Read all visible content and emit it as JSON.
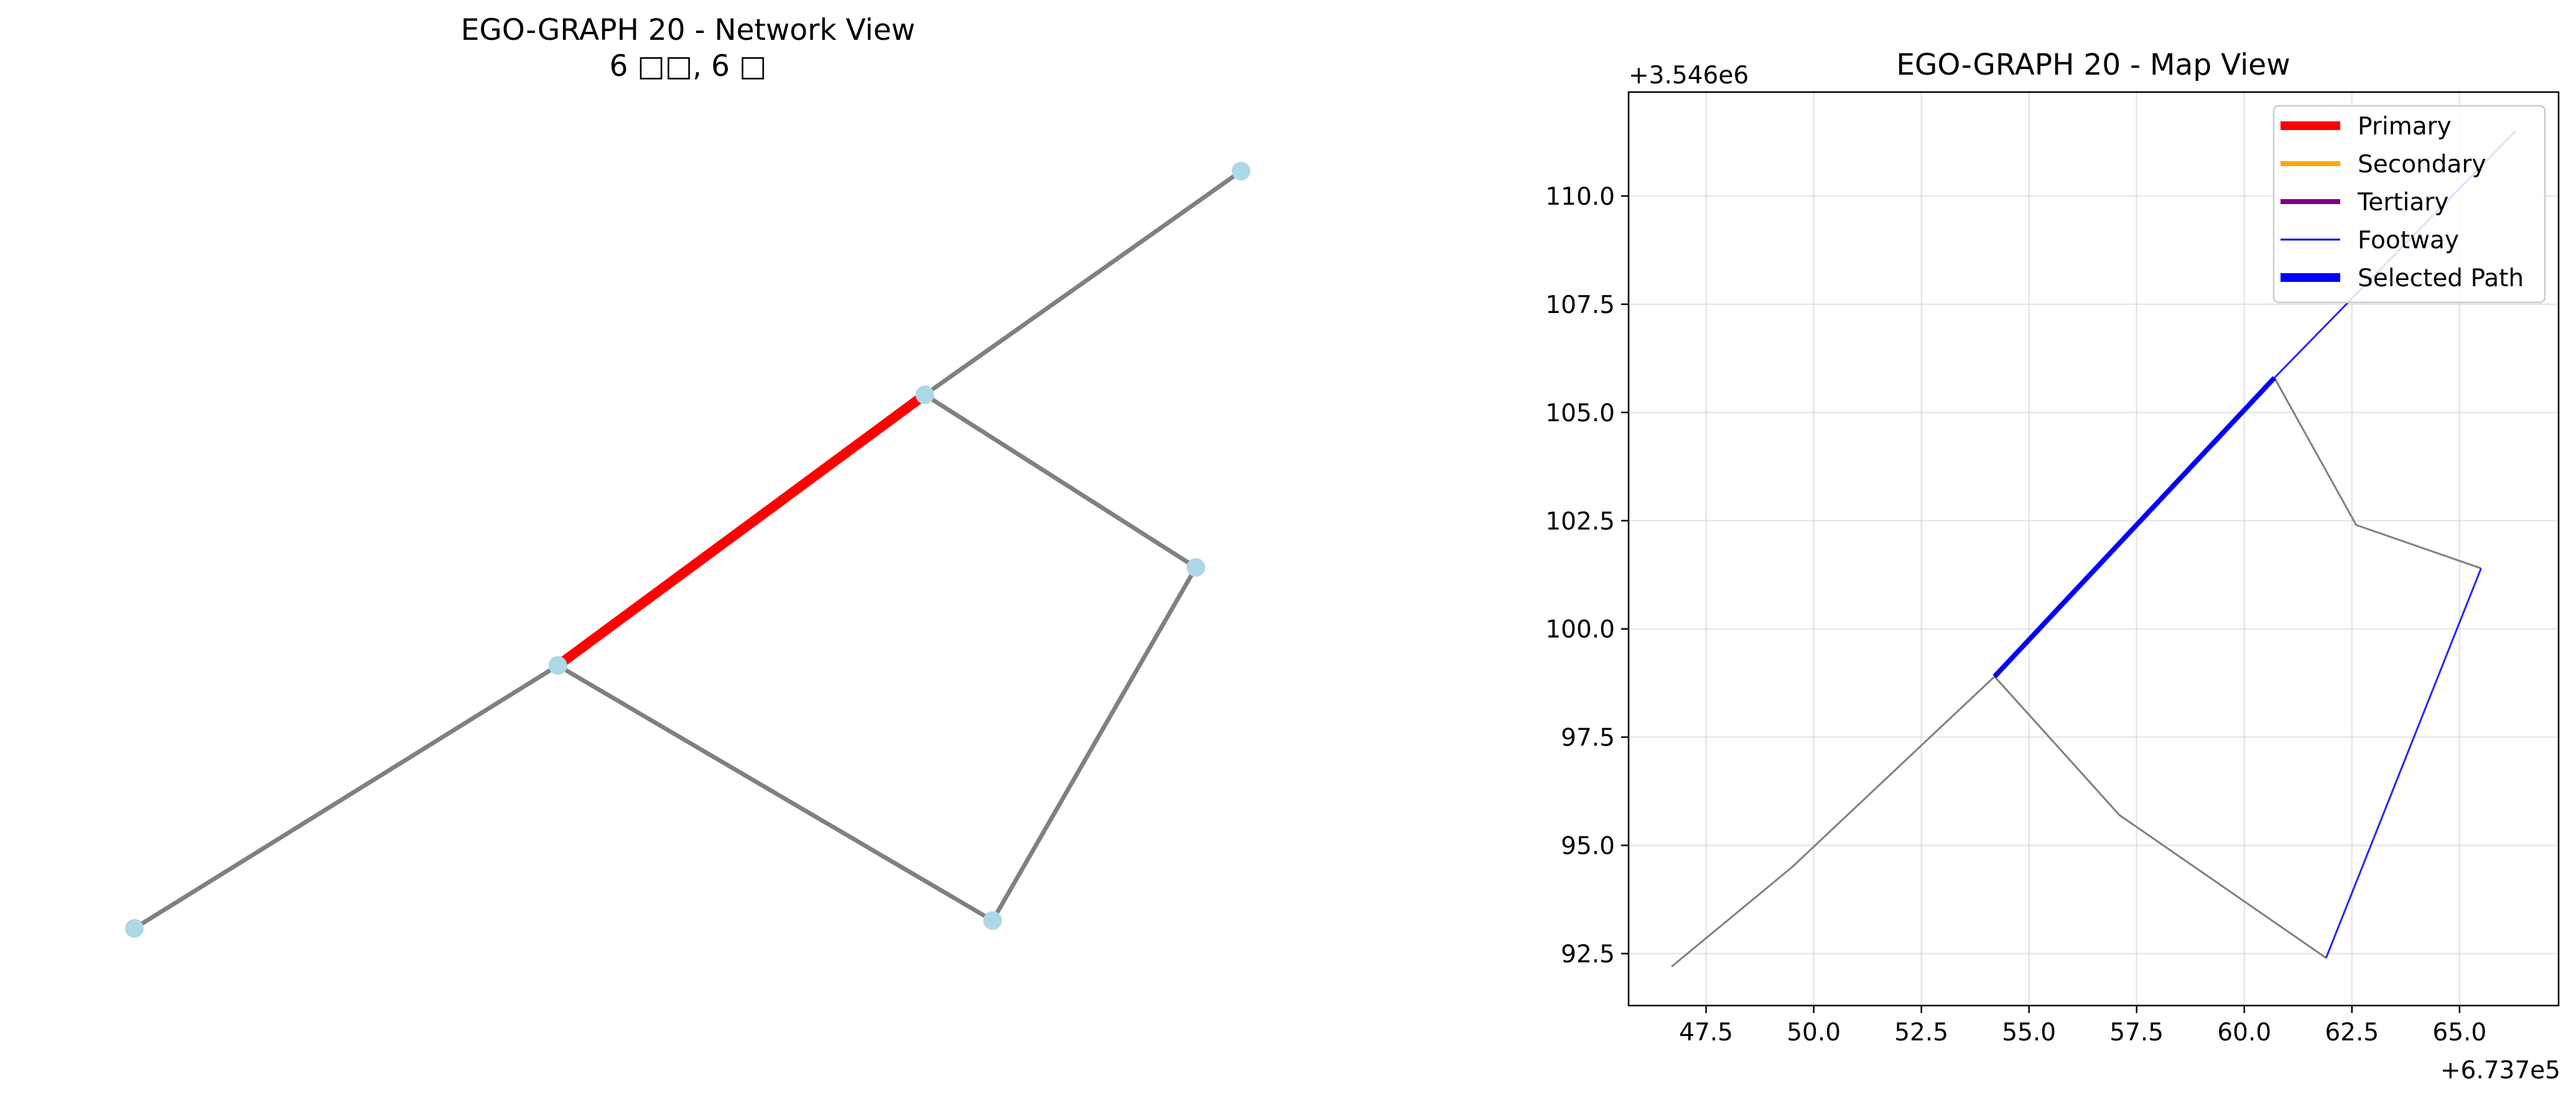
{
  "chart_data": [
    {
      "type": "network",
      "title": "EGO-GRAPH 20 - Network View",
      "subtitle": "6 □□, 6 □",
      "node_color": "#add8e6",
      "edge_color": "#808080",
      "highlight_color": "#ff0000",
      "nodes": [
        {
          "id": "n1",
          "x": 46.7,
          "y": 92.2
        },
        {
          "id": "n2",
          "x": 54.2,
          "y": 98.9
        },
        {
          "id": "n3",
          "x": 60.7,
          "y": 105.8
        },
        {
          "id": "n4",
          "x": 66.3,
          "y": 111.5
        },
        {
          "id": "n5",
          "x": 65.5,
          "y": 101.4
        },
        {
          "id": "n6",
          "x": 61.9,
          "y": 92.4
        }
      ],
      "edges": [
        {
          "source": "n1",
          "target": "n2",
          "highlighted": false
        },
        {
          "source": "n2",
          "target": "n3",
          "highlighted": true
        },
        {
          "source": "n3",
          "target": "n4",
          "highlighted": false
        },
        {
          "source": "n3",
          "target": "n5",
          "highlighted": false
        },
        {
          "source": "n5",
          "target": "n6",
          "highlighted": false
        },
        {
          "source": "n2",
          "target": "n6",
          "highlighted": false
        }
      ]
    },
    {
      "type": "line",
      "title": "EGO-GRAPH 20 - Map View",
      "x_offset_label": "+6.737e5",
      "y_offset_label": "+3.546e6",
      "xlim": [
        45.7,
        67.3
      ],
      "ylim": [
        91.3,
        112.4
      ],
      "xticks": [
        47.5,
        50.0,
        52.5,
        55.0,
        57.5,
        60.0,
        62.5,
        65.0
      ],
      "xtick_labels": [
        "47.5",
        "50.0",
        "52.5",
        "55.0",
        "57.5",
        "60.0",
        "62.5",
        "65.0"
      ],
      "yticks": [
        92.5,
        95.0,
        97.5,
        100.0,
        102.5,
        105.0,
        107.5,
        110.0
      ],
      "ytick_labels": [
        "92.5",
        "95.0",
        "97.5",
        "100.0",
        "102.5",
        "105.0",
        "107.5",
        "110.0"
      ],
      "grid": true,
      "legend_location": "upper right",
      "legend": [
        {
          "label": "Primary",
          "color": "#ff0000",
          "width": "thick"
        },
        {
          "label": "Secondary",
          "color": "#ffa500",
          "width": "medium"
        },
        {
          "label": "Tertiary",
          "color": "#800080",
          "width": "medium"
        },
        {
          "label": "Footway",
          "color": "#0000ff",
          "width": "thin"
        },
        {
          "label": "Selected Path",
          "color": "#0000ff",
          "width": "thick"
        }
      ],
      "series": [
        {
          "kind": "other",
          "color": "#808080",
          "points": [
            [
              46.7,
              92.2
            ],
            [
              49.5,
              94.5
            ],
            [
              54.2,
              98.9
            ]
          ]
        },
        {
          "kind": "other",
          "color": "#808080",
          "points": [
            [
              54.2,
              98.9
            ],
            [
              57.1,
              95.7
            ],
            [
              61.9,
              92.4
            ]
          ]
        },
        {
          "kind": "other",
          "color": "#808080",
          "points": [
            [
              60.7,
              105.8
            ],
            [
              62.6,
              102.4
            ],
            [
              65.5,
              101.4
            ]
          ]
        },
        {
          "kind": "footway",
          "color": "#0000ff",
          "points": [
            [
              60.7,
              105.8
            ],
            [
              66.3,
              111.5
            ]
          ]
        },
        {
          "kind": "footway",
          "color": "#0000ff",
          "points": [
            [
              61.9,
              92.4
            ],
            [
              65.5,
              101.4
            ]
          ]
        },
        {
          "kind": "selected",
          "color": "#0000ff",
          "points": [
            [
              54.2,
              98.9
            ],
            [
              60.7,
              105.8
            ]
          ]
        }
      ]
    }
  ]
}
